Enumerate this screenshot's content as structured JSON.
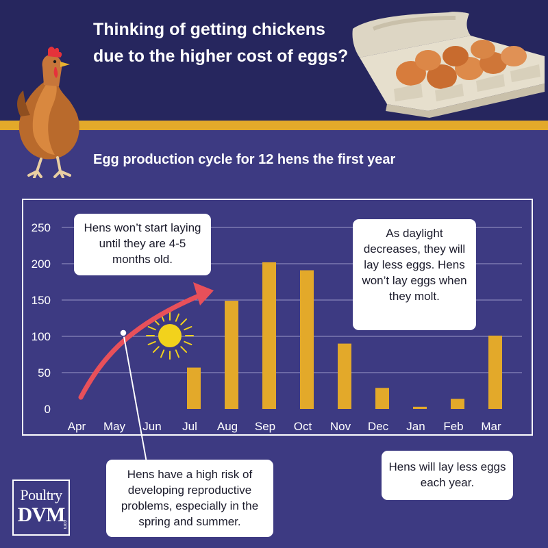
{
  "header": {
    "headline": "Thinking of getting chickens due to the higher cost of eggs?"
  },
  "chart_data": {
    "type": "bar",
    "title": "Egg production cycle for 12 hens the first year",
    "xlabel": "",
    "ylabel": "",
    "categories": [
      "Apr",
      "May",
      "Jun",
      "Jul",
      "Aug",
      "Sep",
      "Oct",
      "Nov",
      "Dec",
      "Jan",
      "Feb",
      "Mar"
    ],
    "values": [
      0,
      0,
      0,
      57,
      149,
      202,
      191,
      90,
      29,
      3,
      14,
      101
    ],
    "ylim": [
      0,
      250
    ],
    "yticks": [
      0,
      50,
      100,
      150,
      200,
      250
    ],
    "grid": true,
    "bar_color": "#e3a92a"
  },
  "callouts": {
    "start_laying": "Hens won’t start laying until they are 4-5 months old.",
    "daylight": "As daylight decreases, they will lay less eggs. Hens won’t lay eggs when they molt.",
    "risk": "Hens have a high risk of developing reproductive problems, especially in the spring and summer.",
    "less_each_year": "Hens will lay less eggs each year."
  },
  "logo": {
    "line1": "Poultry",
    "line2": "DVM",
    "line3": ".com"
  },
  "colors": {
    "background": "#3d3a82",
    "header": "#26265e",
    "gold": "#e3a92a",
    "arrow": "#e8505a",
    "sun": "#f2d21c"
  },
  "icons": {
    "hen": "hen-icon",
    "egg_carton": "egg-carton-icon",
    "sun": "sun-icon"
  }
}
